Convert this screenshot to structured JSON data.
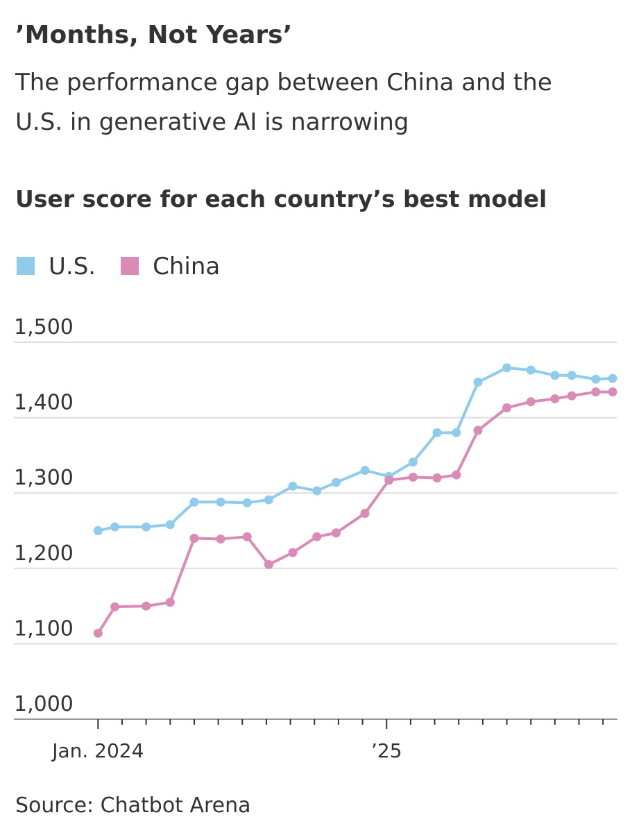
{
  "chart_data": {
    "type": "line",
    "title": "’Months, Not Years’",
    "subtitle": "The performance gap between China and the U.S. in generative AI is narrowing",
    "chart_title": "User score for each country’s best model",
    "source": "Source: Chatbot Arena",
    "x": [
      0,
      0.7,
      2,
      3,
      4,
      5.1,
      6.2,
      7.1,
      8.1,
      9.1,
      9.9,
      11.1,
      12.1,
      13.1,
      14.1,
      14.9,
      15.8,
      17,
      18,
      19,
      19.7,
      20.7,
      21.4
    ],
    "series": [
      {
        "name": "U.S.",
        "color": "#8fcbea",
        "values": [
          1250,
          1255,
          1255,
          1258,
          1288,
          1288,
          1287,
          1291,
          1309,
          1303,
          1314,
          1330,
          1322,
          1341,
          1380,
          1380,
          1447,
          1466,
          1463,
          1456,
          1456,
          1451,
          1452
        ]
      },
      {
        "name": "China",
        "color": "#d98bb5",
        "values": [
          1114,
          1149,
          1150,
          1155,
          1240,
          1239,
          1242,
          1205,
          1221,
          1242,
          1247,
          1273,
          1317,
          1321,
          1320,
          1324,
          1383,
          1413,
          1421,
          1425,
          1429,
          1434,
          1434
        ]
      }
    ],
    "xlim": [
      -3.5,
      21.6
    ],
    "xticks": [
      {
        "value": 0,
        "label": "Jan. 2024"
      },
      {
        "value": 1,
        "label": null
      },
      {
        "value": 2,
        "label": null
      },
      {
        "value": 3,
        "label": null
      },
      {
        "value": 4,
        "label": null
      },
      {
        "value": 5,
        "label": null
      },
      {
        "value": 6,
        "label": null
      },
      {
        "value": 7,
        "label": null
      },
      {
        "value": 8,
        "label": null
      },
      {
        "value": 9,
        "label": null
      },
      {
        "value": 10,
        "label": null
      },
      {
        "value": 11,
        "label": null
      },
      {
        "value": 12,
        "label": "’25"
      },
      {
        "value": 13,
        "label": null
      },
      {
        "value": 14,
        "label": null
      },
      {
        "value": 15,
        "label": null
      },
      {
        "value": 16,
        "label": null
      },
      {
        "value": 17,
        "label": null
      },
      {
        "value": 18,
        "label": null
      },
      {
        "value": 19,
        "label": null
      },
      {
        "value": 20,
        "label": null
      },
      {
        "value": 21,
        "label": null
      }
    ],
    "ylim": [
      1000,
      1500
    ],
    "yticks": [
      {
        "value": 1000,
        "label": "1,000"
      },
      {
        "value": 1100,
        "label": "1,100"
      },
      {
        "value": 1200,
        "label": "1,200"
      },
      {
        "value": 1300,
        "label": "1,300"
      },
      {
        "value": 1400,
        "label": "1,400"
      },
      {
        "value": 1500,
        "label": "1,500"
      }
    ],
    "grid": true
  }
}
